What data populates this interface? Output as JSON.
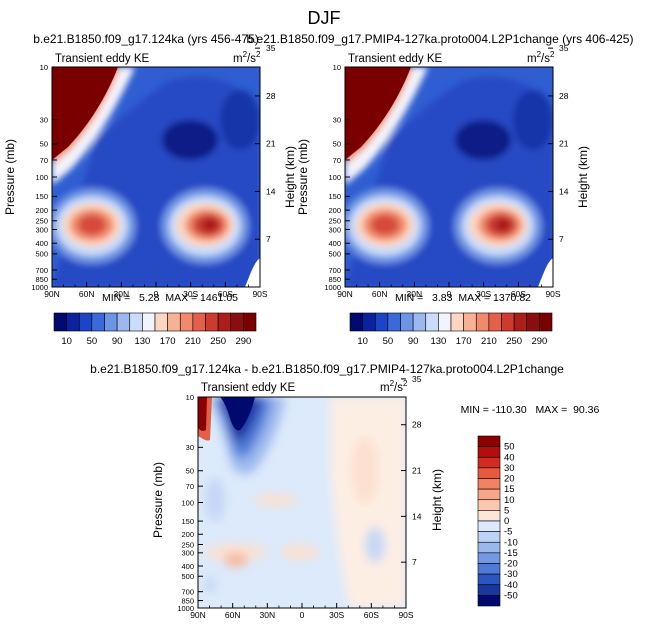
{
  "figure_title": "DJF",
  "chart_data": [
    {
      "type": "heatmap",
      "id": "top-left",
      "run_title": "b.e21.B1850.f09_g17.124ka (yrs 456-475)",
      "panel_label": "Transient eddy KE",
      "units_base": "m",
      "units_exp_num": "2",
      "units_den": "s",
      "units_exp_den": "2",
      "stats_text": "MIN =   5.28  MAX = 1461.05",
      "min": 5.28,
      "max": 1461.05,
      "xlabel": "",
      "ylabel": "Pressure (mb)",
      "y2label": "Height (km)",
      "x_ticks": [
        "90N",
        "60N",
        "30N",
        "0",
        "30S",
        "60S",
        "90S"
      ],
      "y_ticks": [
        "10",
        "30",
        "50",
        "70",
        "100",
        "150",
        "200",
        "250",
        "300",
        "400",
        "500",
        "700",
        "850",
        "1000"
      ],
      "y2_ticks": [
        "35",
        "28",
        "21",
        "14",
        "7"
      ],
      "colorbar_labels": [
        "10",
        "50",
        "90",
        "130",
        "170",
        "210",
        "250",
        "290"
      ],
      "contour_levels": [
        10,
        30,
        50,
        70,
        90,
        110,
        130,
        150,
        170,
        190,
        210,
        230,
        250,
        270,
        290
      ],
      "features": [
        {
          "name": "stratospheric polar jet",
          "lat": "90N-50N",
          "pressure": "10-50",
          "value": ">290"
        },
        {
          "name": "NH storm track max",
          "lat": "~38N",
          "pressure": "~250",
          "value": "~250"
        },
        {
          "name": "SH storm track max",
          "lat": "~48S",
          "pressure": "~250",
          "value": "~290"
        }
      ]
    },
    {
      "type": "heatmap",
      "id": "top-right",
      "run_title": "b.e21.B1850.f09_g17.PMIP4-127ka.proto004.L2P1change (yrs 406-425)",
      "panel_label": "Transient eddy KE",
      "units_base": "m",
      "units_exp_num": "2",
      "units_den": "s",
      "units_exp_den": "2",
      "stats_text": "MIN =   3.83  MAX = 1370.82",
      "min": 3.83,
      "max": 1370.82,
      "xlabel": "",
      "ylabel": "Pressure (mb)",
      "y2label": "Height (km)",
      "x_ticks": [
        "90N",
        "60N",
        "30N",
        "0",
        "30S",
        "60S",
        "90S"
      ],
      "y_ticks": [
        "10",
        "30",
        "50",
        "70",
        "100",
        "150",
        "200",
        "250",
        "300",
        "400",
        "500",
        "700",
        "850",
        "1000"
      ],
      "y2_ticks": [
        "35",
        "28",
        "21",
        "14",
        "7"
      ],
      "colorbar_labels": [
        "10",
        "50",
        "90",
        "130",
        "170",
        "210",
        "250",
        "290"
      ],
      "contour_levels": [
        10,
        30,
        50,
        70,
        90,
        110,
        130,
        150,
        170,
        190,
        210,
        230,
        250,
        270,
        290
      ],
      "features": [
        {
          "name": "stratospheric polar jet",
          "lat": "90N-50N",
          "pressure": "10-50",
          "value": ">290"
        },
        {
          "name": "NH storm track max",
          "lat": "~38N",
          "pressure": "~250",
          "value": "~250"
        },
        {
          "name": "SH storm track max",
          "lat": "~48S",
          "pressure": "~250",
          "value": "~290"
        }
      ]
    },
    {
      "type": "heatmap",
      "id": "bottom-difference",
      "run_title": "b.e21.B1850.f09_g17.124ka - b.e21.B1850.f09_g17.PMIP4-127ka.proto004.L2P1change",
      "panel_label": "Transient eddy KE",
      "units_base": "m",
      "units_exp_num": "2",
      "units_den": "s",
      "units_exp_den": "2",
      "stats_text": "MIN = -110.30   MAX =  90.36",
      "min": -110.3,
      "max": 90.36,
      "xlabel": "",
      "ylabel": "Pressure (mb)",
      "y2label": "Height (km)",
      "x_ticks": [
        "90N",
        "60N",
        "30N",
        "0",
        "30S",
        "60S",
        "90S"
      ],
      "y_ticks": [
        "10",
        "30",
        "50",
        "70",
        "100",
        "150",
        "200",
        "250",
        "300",
        "400",
        "500",
        "700",
        "850",
        "1000"
      ],
      "y2_ticks": [
        "35",
        "28",
        "21",
        "14",
        "7"
      ],
      "colorbar_labels": [
        "50",
        "40",
        "30",
        "20",
        "15",
        "10",
        "5",
        "0",
        "-5",
        "-10",
        "-15",
        "-20",
        "-30",
        "-40",
        "-50"
      ],
      "contour_levels": [
        -50,
        -40,
        -30,
        -20,
        -15,
        -10,
        -5,
        0,
        5,
        10,
        15,
        20,
        30,
        40,
        50
      ],
      "features": [
        {
          "name": "positive polar stratosphere strip",
          "lat": "90N-85N",
          "pressure": "10-70",
          "value": ">50"
        },
        {
          "name": "negative stratospheric anomaly",
          "lat": "80N-40N",
          "pressure": "10-100",
          "value": "<-50"
        },
        {
          "name": "positive subtropical band",
          "lat": "30S-60S",
          "pressure": "10-1000",
          "value": "5 to 10"
        }
      ]
    }
  ],
  "colors": {
    "ke_scale": [
      "#000a6e",
      "#0a22a0",
      "#1c44c8",
      "#3a6ada",
      "#6e94e6",
      "#9cb8f0",
      "#cbdcfa",
      "#f2f4fb",
      "#fcd6c0",
      "#f7b195",
      "#f18a6c",
      "#e4604b",
      "#cd3b2f",
      "#ad1d1b",
      "#8a0e0e",
      "#7a0000"
    ],
    "diff_scale": [
      "#8c0000",
      "#b30d0d",
      "#d42b20",
      "#e85a3f",
      "#f28263",
      "#f7a688",
      "#fbc7ae",
      "#fde6d8",
      "#dceafb",
      "#bcd3f6",
      "#99b8ee",
      "#7399e4",
      "#4e79d6",
      "#2d55c0",
      "#1a36a0",
      "#000a6e"
    ]
  }
}
